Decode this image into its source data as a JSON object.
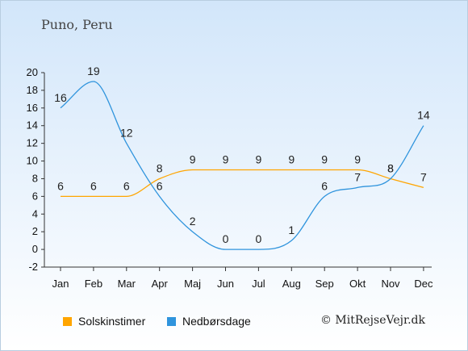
{
  "location": "Puno, Peru",
  "credit": "© MitRejseVejr.dk",
  "colors": {
    "sun": "#ffa500",
    "rain": "#2f94dd"
  },
  "chart_data": {
    "type": "line",
    "categories": [
      "Jan",
      "Feb",
      "Mar",
      "Apr",
      "Maj",
      "Jun",
      "Jul",
      "Aug",
      "Sep",
      "Okt",
      "Nov",
      "Dec"
    ],
    "ylim": [
      -2,
      20
    ],
    "yticks": [
      -2,
      0,
      2,
      4,
      6,
      8,
      10,
      12,
      14,
      16,
      18,
      20
    ],
    "grid": false,
    "legend_position": "bottom",
    "series": [
      {
        "name": "Solskinstimer",
        "color": "#ffa500",
        "values": [
          6,
          6,
          6,
          8,
          9,
          9,
          9,
          9,
          9,
          9,
          8,
          7
        ]
      },
      {
        "name": "Nedbørsdage",
        "color": "#2f94dd",
        "values": [
          16,
          19,
          12,
          6,
          2,
          0,
          0,
          1,
          6,
          7,
          8,
          14
        ]
      }
    ]
  }
}
